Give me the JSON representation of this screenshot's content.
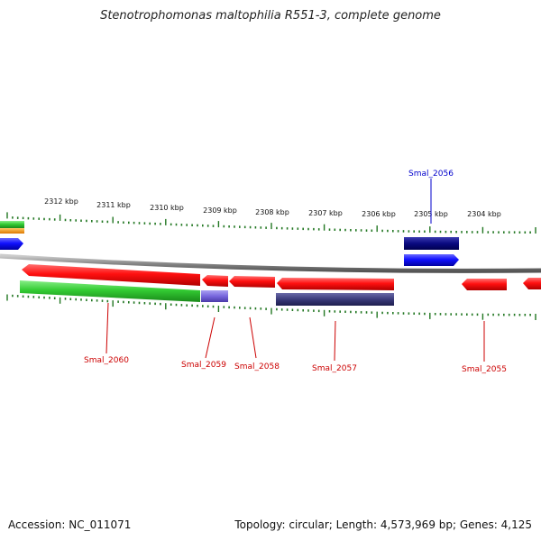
{
  "title": "Stenotrophomonas maltophilia R551-3, complete genome",
  "footer": {
    "accession": "Accession: NC_011071",
    "topology": "Topology: circular; Length: 4,573,969 bp; Genes: 4,125"
  },
  "scale_labels": [
    "2312 kbp",
    "2311 kbp",
    "2310 kbp",
    "2309 kbp",
    "2308 kbp",
    "2307 kbp",
    "2306 kbp",
    "2305 kbp",
    "2304 kbp"
  ],
  "genes": [
    {
      "name": "Smal_2060",
      "color": "#cc0000"
    },
    {
      "name": "Smal_2059",
      "color": "#cc0000"
    },
    {
      "name": "Smal_2058",
      "color": "#cc0000"
    },
    {
      "name": "Smal_2057",
      "color": "#cc0000"
    },
    {
      "name": "Smal_2056",
      "color": "#0000cc"
    },
    {
      "name": "Smal_2055",
      "color": "#cc0000"
    }
  ],
  "colors": {
    "forward_cds": "#1a1aff",
    "reverse_cds": "#ff1a1a",
    "green_feature": "#33cc33",
    "purple_feature": "#7766dd",
    "navy_feature": "#0a0a80",
    "dark_purple_feature": "#3a3a7a",
    "orange_feature": "#ff9900",
    "tick_color": "#227722",
    "backbone": "#888888"
  }
}
